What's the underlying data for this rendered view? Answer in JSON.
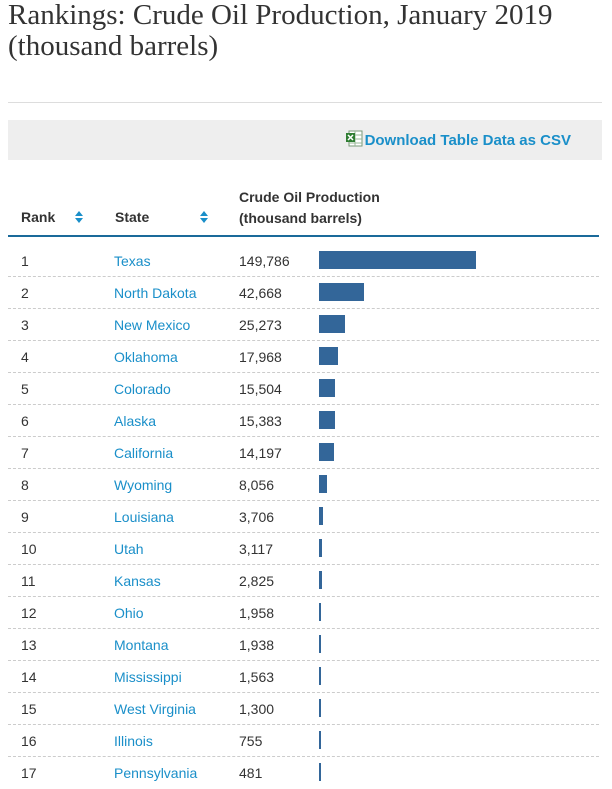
{
  "page": {
    "title": "Rankings: Crude Oil Production, January 2019 (thousand barrels)",
    "download_label": "Download Table Data as CSV",
    "colors": {
      "bar": "#336699",
      "link": "#1a8fc9",
      "header_rule": "#1a6a9a",
      "download_bg": "#eeeeee"
    }
  },
  "table": {
    "headers": {
      "rank": "Rank",
      "state": "State",
      "production_line1": "Crude Oil Production",
      "production_line2": "(thousand barrels)"
    },
    "max_value": 149786,
    "rows": [
      {
        "rank": "1",
        "state": "Texas",
        "value_text": "149,786",
        "value": 149786
      },
      {
        "rank": "2",
        "state": "North Dakota",
        "value_text": "42,668",
        "value": 42668
      },
      {
        "rank": "3",
        "state": "New Mexico",
        "value_text": "25,273",
        "value": 25273
      },
      {
        "rank": "4",
        "state": "Oklahoma",
        "value_text": "17,968",
        "value": 17968
      },
      {
        "rank": "5",
        "state": "Colorado",
        "value_text": "15,504",
        "value": 15504
      },
      {
        "rank": "6",
        "state": "Alaska",
        "value_text": "15,383",
        "value": 15383
      },
      {
        "rank": "7",
        "state": "California",
        "value_text": "14,197",
        "value": 14197
      },
      {
        "rank": "8",
        "state": "Wyoming",
        "value_text": "8,056",
        "value": 8056
      },
      {
        "rank": "9",
        "state": "Louisiana",
        "value_text": "3,706",
        "value": 3706
      },
      {
        "rank": "10",
        "state": "Utah",
        "value_text": "3,117",
        "value": 3117
      },
      {
        "rank": "11",
        "state": "Kansas",
        "value_text": "2,825",
        "value": 2825
      },
      {
        "rank": "12",
        "state": "Ohio",
        "value_text": "1,958",
        "value": 1958
      },
      {
        "rank": "13",
        "state": "Montana",
        "value_text": "1,938",
        "value": 1938
      },
      {
        "rank": "14",
        "state": "Mississippi",
        "value_text": "1,563",
        "value": 1563
      },
      {
        "rank": "15",
        "state": "West Virginia",
        "value_text": "1,300",
        "value": 1300
      },
      {
        "rank": "16",
        "state": "Illinois",
        "value_text": "755",
        "value": 755
      },
      {
        "rank": "17",
        "state": "Pennsylvania",
        "value_text": "481",
        "value": 481
      }
    ]
  }
}
